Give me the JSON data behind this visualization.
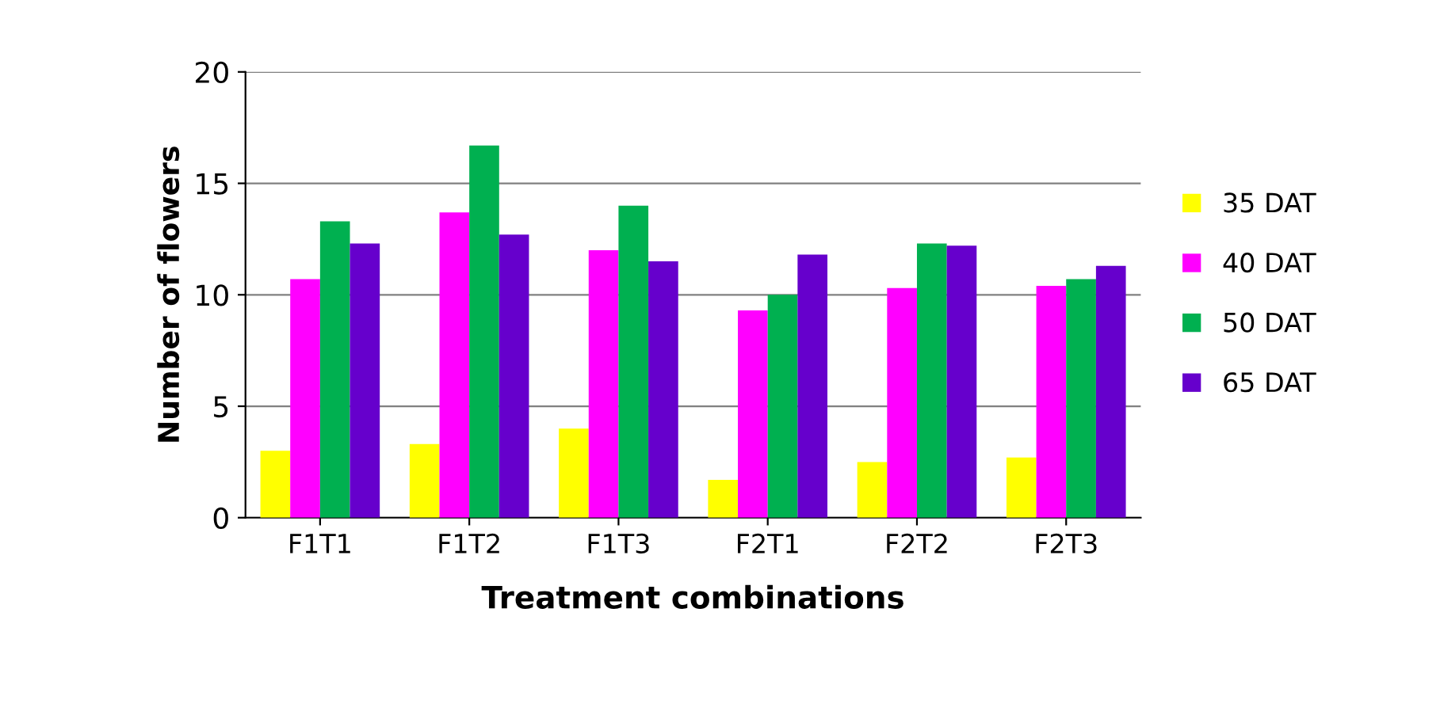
{
  "chart_data": {
    "type": "bar",
    "xlabel": "Treatment combinations",
    "ylabel": "Number of flowers",
    "categories": [
      "F1T1",
      "F1T2",
      "F1T3",
      "F2T1",
      "F2T2",
      "F2T3"
    ],
    "series": [
      {
        "name": "35 DAT",
        "color": "#ffff00",
        "values": [
          3.0,
          3.3,
          4.0,
          1.7,
          2.5,
          2.7
        ]
      },
      {
        "name": "40 DAT",
        "color": "#ff00ff",
        "values": [
          10.7,
          13.7,
          12.0,
          9.3,
          10.3,
          10.4
        ]
      },
      {
        "name": "50 DAT",
        "color": "#00b050",
        "values": [
          13.3,
          16.7,
          14.0,
          10.0,
          12.3,
          10.7
        ]
      },
      {
        "name": "65 DAT",
        "color": "#6600cc",
        "values": [
          12.3,
          12.7,
          11.5,
          11.8,
          12.2,
          11.3
        ]
      }
    ],
    "ylim": [
      0,
      20
    ],
    "yticks": [
      0,
      5,
      10,
      15,
      20
    ],
    "grid": "y",
    "legend": "right"
  }
}
